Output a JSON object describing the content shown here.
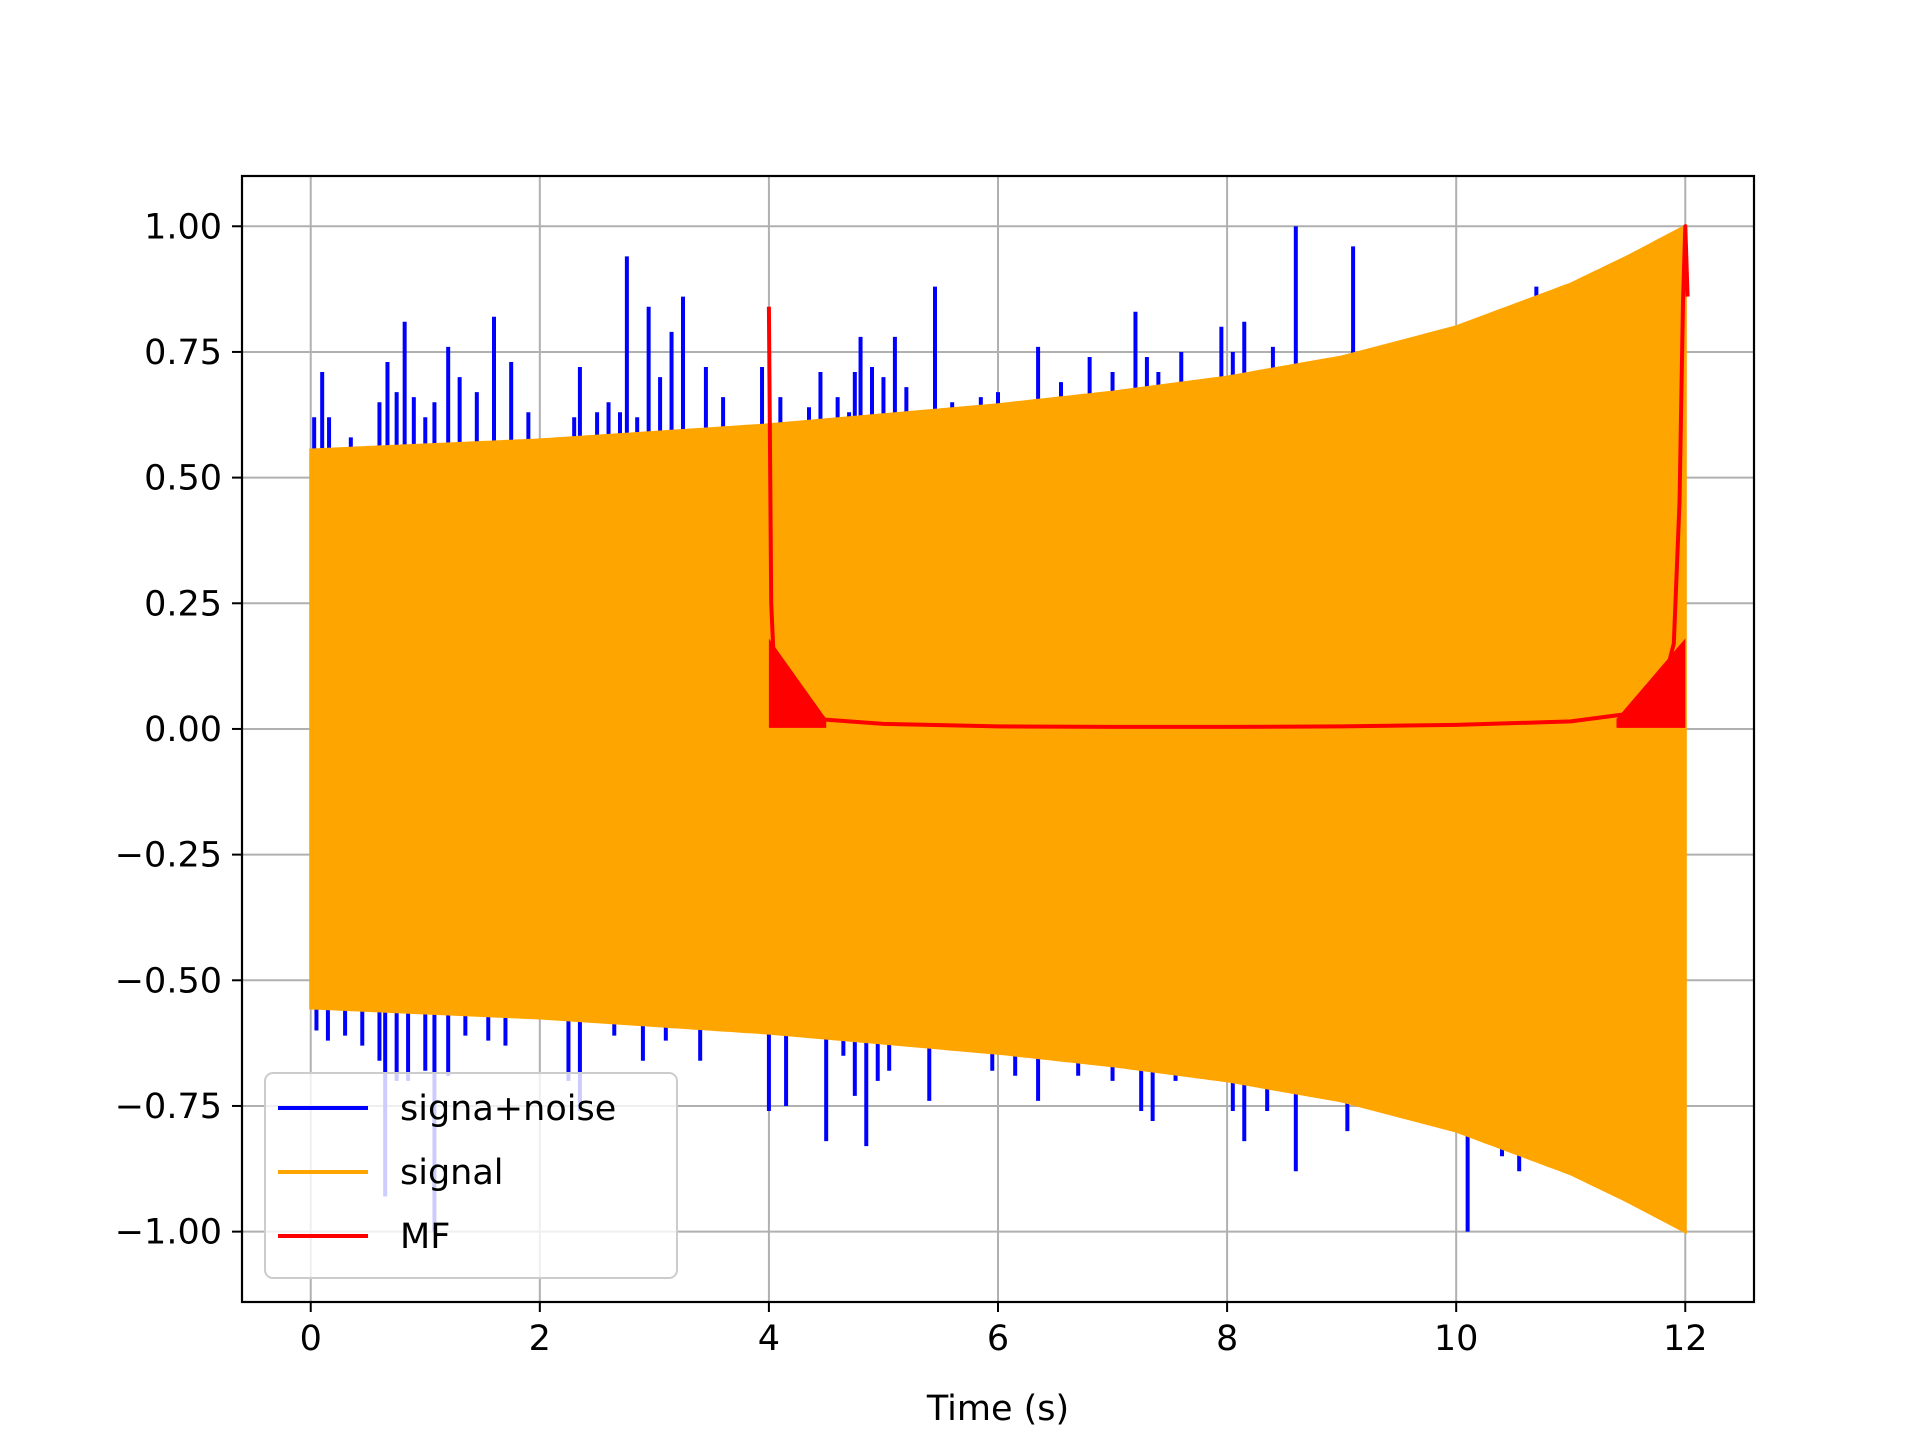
{
  "chart_data": {
    "type": "line",
    "title": "",
    "xlabel": "Time (s)",
    "ylabel": "",
    "xlim": [
      -0.6,
      12.6
    ],
    "ylim": [
      -1.14,
      1.1
    ],
    "grid": true,
    "legend_position": "lower-left",
    "x_ticks": [
      0,
      2,
      4,
      6,
      8,
      10,
      12
    ],
    "x_tick_labels": [
      "0",
      "2",
      "4",
      "6",
      "8",
      "10",
      "12"
    ],
    "y_ticks": [
      1.0,
      0.75,
      0.5,
      0.25,
      0.0,
      -0.25,
      -0.5,
      -0.75,
      -1.0
    ],
    "y_tick_labels": [
      "1.00",
      "0.75",
      "0.50",
      "0.25",
      "0.00",
      "−0.25",
      "−0.50",
      "−0.75",
      "−1.00"
    ],
    "series": [
      {
        "name": "signa+noise",
        "color": "#0000ff",
        "description_values": "signal plus sparse noise spikes",
        "x_range": [
          0,
          12
        ],
        "spikes_up": [
          {
            "x": 0.03,
            "y": 0.62
          },
          {
            "x": 0.1,
            "y": 0.71
          },
          {
            "x": 0.16,
            "y": 0.62
          },
          {
            "x": 0.35,
            "y": 0.58
          },
          {
            "x": 0.6,
            "y": 0.65
          },
          {
            "x": 0.67,
            "y": 0.73
          },
          {
            "x": 0.75,
            "y": 0.67
          },
          {
            "x": 0.82,
            "y": 0.81
          },
          {
            "x": 0.9,
            "y": 0.66
          },
          {
            "x": 1.0,
            "y": 0.62
          },
          {
            "x": 1.08,
            "y": 0.65
          },
          {
            "x": 1.2,
            "y": 0.76
          },
          {
            "x": 1.3,
            "y": 0.7
          },
          {
            "x": 1.45,
            "y": 0.67
          },
          {
            "x": 1.6,
            "y": 0.82
          },
          {
            "x": 1.75,
            "y": 0.73
          },
          {
            "x": 1.9,
            "y": 0.63
          },
          {
            "x": 2.3,
            "y": 0.62
          },
          {
            "x": 2.35,
            "y": 0.72
          },
          {
            "x": 2.5,
            "y": 0.63
          },
          {
            "x": 2.6,
            "y": 0.65
          },
          {
            "x": 2.7,
            "y": 0.63
          },
          {
            "x": 2.76,
            "y": 0.94
          },
          {
            "x": 2.85,
            "y": 0.62
          },
          {
            "x": 2.95,
            "y": 0.84
          },
          {
            "x": 3.05,
            "y": 0.7
          },
          {
            "x": 3.15,
            "y": 0.79
          },
          {
            "x": 3.25,
            "y": 0.86
          },
          {
            "x": 3.45,
            "y": 0.72
          },
          {
            "x": 3.6,
            "y": 0.66
          },
          {
            "x": 3.94,
            "y": 0.72
          },
          {
            "x": 4.1,
            "y": 0.66
          },
          {
            "x": 4.35,
            "y": 0.64
          },
          {
            "x": 4.45,
            "y": 0.71
          },
          {
            "x": 4.6,
            "y": 0.66
          },
          {
            "x": 4.7,
            "y": 0.63
          },
          {
            "x": 4.75,
            "y": 0.71
          },
          {
            "x": 4.8,
            "y": 0.78
          },
          {
            "x": 4.9,
            "y": 0.72
          },
          {
            "x": 5.0,
            "y": 0.7
          },
          {
            "x": 5.1,
            "y": 0.78
          },
          {
            "x": 5.2,
            "y": 0.68
          },
          {
            "x": 5.45,
            "y": 0.88
          },
          {
            "x": 5.6,
            "y": 0.65
          },
          {
            "x": 5.85,
            "y": 0.66
          },
          {
            "x": 6.0,
            "y": 0.67
          },
          {
            "x": 6.2,
            "y": 0.65
          },
          {
            "x": 6.35,
            "y": 0.76
          },
          {
            "x": 6.55,
            "y": 0.69
          },
          {
            "x": 6.8,
            "y": 0.74
          },
          {
            "x": 7.0,
            "y": 0.71
          },
          {
            "x": 7.2,
            "y": 0.83
          },
          {
            "x": 7.3,
            "y": 0.74
          },
          {
            "x": 7.4,
            "y": 0.71
          },
          {
            "x": 7.6,
            "y": 0.75
          },
          {
            "x": 7.95,
            "y": 0.8
          },
          {
            "x": 8.05,
            "y": 0.75
          },
          {
            "x": 8.15,
            "y": 0.81
          },
          {
            "x": 8.4,
            "y": 0.76
          },
          {
            "x": 8.6,
            "y": 1.0
          },
          {
            "x": 9.1,
            "y": 0.96
          },
          {
            "x": 10.7,
            "y": 0.88
          }
        ],
        "spikes_down": [
          {
            "x": 0.05,
            "y": -0.6
          },
          {
            "x": 0.15,
            "y": -0.62
          },
          {
            "x": 0.3,
            "y": -0.61
          },
          {
            "x": 0.45,
            "y": -0.63
          },
          {
            "x": 0.6,
            "y": -0.66
          },
          {
            "x": 0.65,
            "y": -0.93
          },
          {
            "x": 0.75,
            "y": -0.7
          },
          {
            "x": 0.85,
            "y": -0.7
          },
          {
            "x": 1.0,
            "y": -0.68
          },
          {
            "x": 1.08,
            "y": -1.0
          },
          {
            "x": 1.2,
            "y": -0.69
          },
          {
            "x": 1.35,
            "y": -0.61
          },
          {
            "x": 1.55,
            "y": -0.62
          },
          {
            "x": 1.7,
            "y": -0.63
          },
          {
            "x": 2.25,
            "y": -0.7
          },
          {
            "x": 2.35,
            "y": -0.76
          },
          {
            "x": 2.65,
            "y": -0.61
          },
          {
            "x": 2.9,
            "y": -0.66
          },
          {
            "x": 3.1,
            "y": -0.62
          },
          {
            "x": 3.4,
            "y": -0.66
          },
          {
            "x": 4.0,
            "y": -0.76
          },
          {
            "x": 4.15,
            "y": -0.75
          },
          {
            "x": 4.5,
            "y": -0.82
          },
          {
            "x": 4.65,
            "y": -0.65
          },
          {
            "x": 4.75,
            "y": -0.73
          },
          {
            "x": 4.85,
            "y": -0.83
          },
          {
            "x": 4.95,
            "y": -0.7
          },
          {
            "x": 5.05,
            "y": -0.68
          },
          {
            "x": 5.4,
            "y": -0.74
          },
          {
            "x": 5.95,
            "y": -0.68
          },
          {
            "x": 6.15,
            "y": -0.69
          },
          {
            "x": 6.35,
            "y": -0.74
          },
          {
            "x": 6.7,
            "y": -0.69
          },
          {
            "x": 7.0,
            "y": -0.7
          },
          {
            "x": 7.25,
            "y": -0.76
          },
          {
            "x": 7.35,
            "y": -0.78
          },
          {
            "x": 7.55,
            "y": -0.7
          },
          {
            "x": 8.05,
            "y": -0.76
          },
          {
            "x": 8.15,
            "y": -0.82
          },
          {
            "x": 8.35,
            "y": -0.76
          },
          {
            "x": 8.6,
            "y": -0.88
          },
          {
            "x": 9.05,
            "y": -0.8
          },
          {
            "x": 9.35,
            "y": -0.76
          },
          {
            "x": 10.1,
            "y": -1.0
          },
          {
            "x": 10.4,
            "y": -0.85
          },
          {
            "x": 10.55,
            "y": -0.88
          }
        ]
      },
      {
        "name": "signal",
        "color": "#ffa500",
        "description_values": "chirp envelope, amplitude at t",
        "x_range": [
          0,
          12
        ],
        "envelope": {
          "x": [
            0,
            1,
            2,
            3,
            4,
            5,
            6,
            7,
            8,
            9,
            10,
            11,
            11.5,
            12
          ],
          "y": [
            0.555,
            0.565,
            0.575,
            0.59,
            0.605,
            0.625,
            0.645,
            0.67,
            0.7,
            0.74,
            0.8,
            0.885,
            0.94,
            1.0
          ]
        }
      },
      {
        "name": "MF",
        "color": "#ff0000",
        "description_values": "matched-filter output",
        "x": [
          4.0,
          4.02,
          4.05,
          4.1,
          4.2,
          4.4,
          5,
          6,
          7,
          8,
          9,
          10,
          11,
          11.5,
          11.8,
          11.9,
          11.95,
          11.98,
          12.0,
          12.02
        ],
        "y": [
          0.84,
          0.25,
          0.1,
          0.05,
          0.03,
          0.02,
          0.01,
          0.005,
          0.004,
          0.004,
          0.005,
          0.008,
          0.015,
          0.03,
          0.08,
          0.17,
          0.45,
          0.85,
          1.0,
          0.86
        ]
      }
    ]
  }
}
